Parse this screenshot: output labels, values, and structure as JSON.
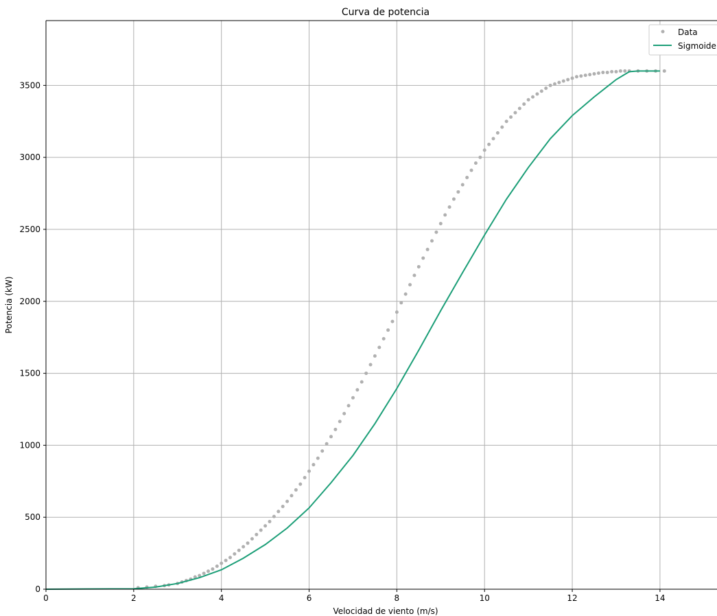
{
  "chart_data": {
    "type": "scatter",
    "title": "Curva de potencia",
    "xlabel": "Velocidad de viento (m/s)",
    "ylabel": "Potencia (kW)",
    "xlim": [
      0,
      15.3
    ],
    "ylim": [
      0,
      3950
    ],
    "xticks": [
      0,
      2,
      4,
      6,
      8,
      10,
      12,
      14
    ],
    "yticks": [
      0,
      500,
      1000,
      1500,
      2000,
      2500,
      3000,
      3500
    ],
    "grid": true,
    "legend_position": "top-right",
    "series": [
      {
        "name": "Data",
        "kind": "scatter",
        "color": "#b0b0b0",
        "x": [
          2.1,
          2.3,
          2.5,
          2.7,
          2.8,
          3.0,
          3.1,
          3.2,
          3.3,
          3.4,
          3.5,
          3.6,
          3.7,
          3.8,
          3.9,
          4.0,
          4.1,
          4.2,
          4.3,
          4.4,
          4.5,
          4.6,
          4.7,
          4.8,
          4.9,
          5.0,
          5.1,
          5.2,
          5.3,
          5.4,
          5.5,
          5.6,
          5.7,
          5.8,
          5.9,
          6.0,
          6.1,
          6.2,
          6.3,
          6.4,
          6.5,
          6.6,
          6.7,
          6.8,
          6.9,
          7.0,
          7.1,
          7.2,
          7.3,
          7.4,
          7.5,
          7.6,
          7.7,
          7.8,
          7.9,
          8.0,
          8.1,
          8.2,
          8.3,
          8.4,
          8.5,
          8.6,
          8.7,
          8.8,
          8.9,
          9.0,
          9.1,
          9.2,
          9.3,
          9.4,
          9.5,
          9.6,
          9.7,
          9.8,
          9.9,
          10.0,
          10.1,
          10.2,
          10.3,
          10.4,
          10.5,
          10.6,
          10.7,
          10.8,
          10.9,
          11.0,
          11.1,
          11.2,
          11.3,
          11.4,
          11.5,
          11.6,
          11.7,
          11.8,
          11.9,
          12.0,
          12.1,
          12.2,
          12.3,
          12.4,
          12.5,
          12.6,
          12.7,
          12.8,
          12.9,
          13.0,
          13.1,
          13.2,
          13.3,
          13.5,
          13.7,
          13.9,
          14.1
        ],
        "y": [
          10,
          15,
          20,
          25,
          30,
          40,
          50,
          60,
          70,
          85,
          95,
          110,
          125,
          140,
          160,
          180,
          200,
          220,
          245,
          270,
          295,
          320,
          350,
          380,
          410,
          440,
          470,
          505,
          540,
          575,
          610,
          650,
          690,
          730,
          775,
          820,
          865,
          910,
          960,
          1010,
          1060,
          1110,
          1165,
          1220,
          1275,
          1330,
          1385,
          1440,
          1500,
          1560,
          1620,
          1680,
          1740,
          1800,
          1860,
          1925,
          1990,
          2050,
          2115,
          2180,
          2240,
          2300,
          2360,
          2420,
          2480,
          2540,
          2600,
          2655,
          2710,
          2760,
          2810,
          2860,
          2910,
          2960,
          3000,
          3050,
          3090,
          3130,
          3170,
          3210,
          3250,
          3280,
          3310,
          3340,
          3370,
          3400,
          3420,
          3440,
          3460,
          3480,
          3500,
          3510,
          3520,
          3530,
          3540,
          3550,
          3560,
          3565,
          3570,
          3575,
          3580,
          3585,
          3590,
          3590,
          3595,
          3595,
          3600,
          3600,
          3600,
          3600,
          3600,
          3600,
          3600
        ]
      },
      {
        "name": "Sigmoide",
        "kind": "line",
        "color": "#1b9e77",
        "x": [
          0,
          1,
          2,
          2.5,
          3,
          3.5,
          4,
          4.5,
          5,
          5.5,
          6,
          6.5,
          7,
          7.5,
          8,
          8.5,
          9,
          9.5,
          10,
          10.5,
          11,
          11.5,
          12,
          12.5,
          13,
          13.3,
          13.5,
          14
        ],
        "y": [
          0,
          2,
          3,
          15,
          40,
          80,
          135,
          215,
          310,
          425,
          565,
          740,
          930,
          1150,
          1395,
          1660,
          1935,
          2200,
          2460,
          2710,
          2930,
          3130,
          3290,
          3420,
          3540,
          3595,
          3600,
          3600
        ]
      }
    ]
  }
}
